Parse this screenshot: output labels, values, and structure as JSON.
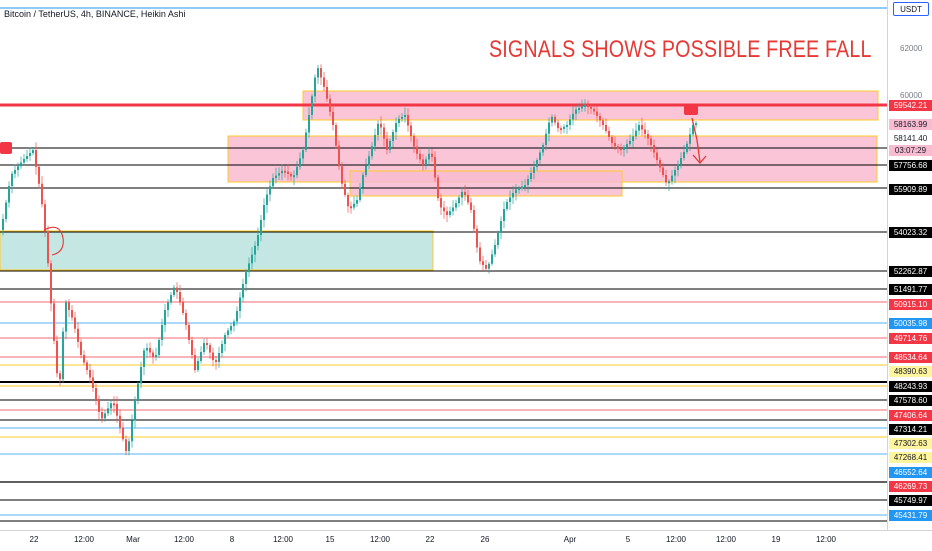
{
  "header": {
    "title": "Bitcoin / TetherUS, 4h, BINANCE, Heikin Ashi"
  },
  "annotation": {
    "text": "SIGNALS SHOWS POSSIBLE FREE FALL"
  },
  "price_axis": {
    "currency": "USDT",
    "ticks": [
      "62000",
      "60000"
    ],
    "labels": [
      {
        "value": "59542.21",
        "bg": "#f23645",
        "fg": "#ffffff"
      },
      {
        "value": "58163.99",
        "bg": "#f8bbd0",
        "fg": "#131722"
      },
      {
        "value": "58141.40",
        "bg": "#ffffff",
        "fg": "#131722"
      },
      {
        "value": "03:07:29",
        "bg": "#f8bbd0",
        "fg": "#131722"
      },
      {
        "value": "57756.68",
        "bg": "#000000",
        "fg": "#ffffff"
      },
      {
        "value": "55909.89",
        "bg": "#000000",
        "fg": "#ffffff"
      },
      {
        "value": "54023.32",
        "bg": "#000000",
        "fg": "#ffffff"
      },
      {
        "value": "52262.87",
        "bg": "#000000",
        "fg": "#ffffff"
      },
      {
        "value": "51491.77",
        "bg": "#000000",
        "fg": "#ffffff"
      },
      {
        "value": "50915.10",
        "bg": "#f23645",
        "fg": "#ffffff"
      },
      {
        "value": "50035.98",
        "bg": "#2196f3",
        "fg": "#ffffff"
      },
      {
        "value": "49714.76",
        "bg": "#f23645",
        "fg": "#ffffff"
      },
      {
        "value": "48534.64",
        "bg": "#f23645",
        "fg": "#ffffff"
      },
      {
        "value": "48390.63",
        "bg": "#fff59d",
        "fg": "#131722"
      },
      {
        "value": "48243.93",
        "bg": "#000000",
        "fg": "#ffffff"
      },
      {
        "value": "47578.60",
        "bg": "#000000",
        "fg": "#ffffff"
      },
      {
        "value": "47406.64",
        "bg": "#f23645",
        "fg": "#ffffff"
      },
      {
        "value": "47314.21",
        "bg": "#000000",
        "fg": "#ffffff"
      },
      {
        "value": "47302.63",
        "bg": "#fff59d",
        "fg": "#131722"
      },
      {
        "value": "47268.41",
        "bg": "#fff59d",
        "fg": "#131722"
      },
      {
        "value": "46552.64",
        "bg": "#2196f3",
        "fg": "#ffffff"
      },
      {
        "value": "46269.73",
        "bg": "#f23645",
        "fg": "#ffffff"
      },
      {
        "value": "45749.97",
        "bg": "#000000",
        "fg": "#ffffff"
      },
      {
        "value": "45431.79",
        "bg": "#2196f3",
        "fg": "#ffffff"
      }
    ]
  },
  "time_axis": {
    "labels": [
      "22",
      "12:00",
      "Mar",
      "12:00",
      "8",
      "12:00",
      "15",
      "12:00",
      "22",
      "26",
      "Apr",
      "5",
      "12:00",
      "12:00",
      "19",
      "12:00"
    ]
  },
  "colors": {
    "up": "#26a69a",
    "down": "#ef5350",
    "signal": "#e53935",
    "zone_red": "#f8bbd0",
    "zone_green": "#b2dfdb",
    "zone_border": "#ffca28"
  }
}
